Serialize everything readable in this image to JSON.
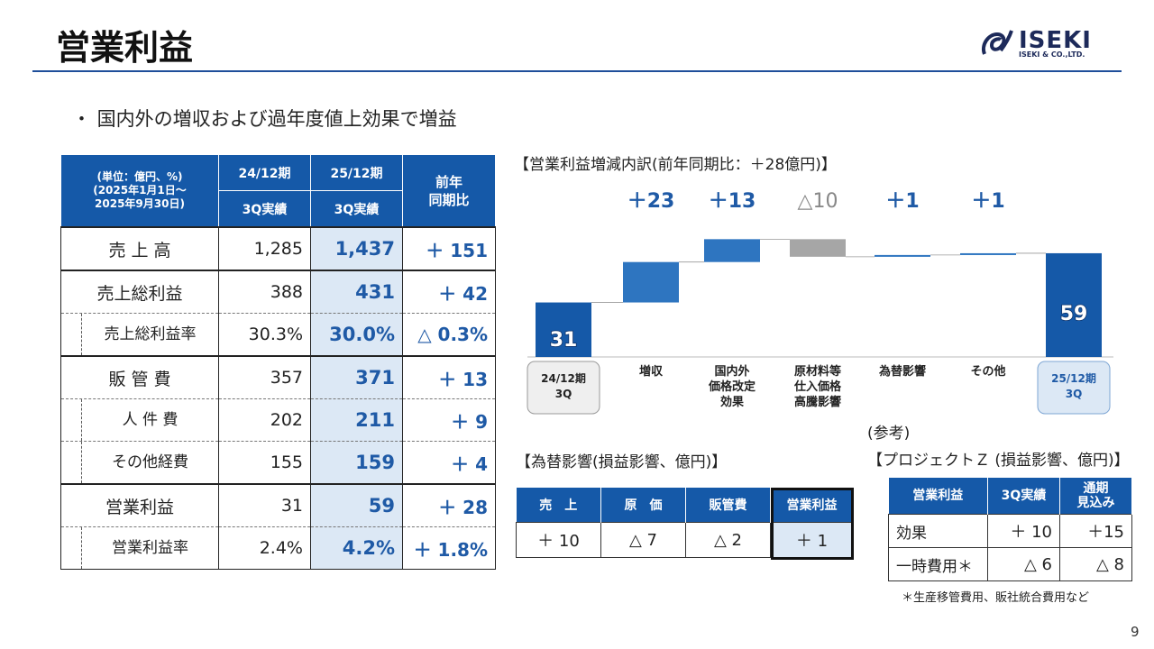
{
  "title": "営業利益",
  "logo": {
    "name": "ISEKI",
    "sub": "ISEKI & CO.,LTD."
  },
  "bullet": "・ 国内外の増収および過年度値上効果で増益",
  "page_number": "9",
  "colors": {
    "brand_blue": "#1559a8",
    "highlight": "#dce8f5",
    "bar_gray": "#a6a6a6",
    "text_blue": "#1f5aa6"
  },
  "main_table": {
    "header": {
      "unit_line1": "(単位：億円、%)",
      "unit_line2": "(2025年1月1日～",
      "unit_line3": "2025年9月30日)",
      "col1_top": "24/12期",
      "col1_bottom": "3Q実績",
      "col2_top": "25/12期",
      "col2_bottom": "3Q実績",
      "col3_line1": "前年",
      "col3_line2": "同期比"
    },
    "rows": [
      {
        "label": "売 上 高",
        "prev": "1,285",
        "curr": "1,437",
        "diff": "＋ 151"
      },
      {
        "label": "売上総利益",
        "prev": "388",
        "curr": "431",
        "diff": "＋ 42"
      },
      {
        "label": "売上総利益率",
        "prev": "30.3%",
        "curr": "30.0%",
        "diff": "△ 0.3%"
      },
      {
        "label": "販 管 費",
        "prev": "357",
        "curr": "371",
        "diff": "＋ 13"
      },
      {
        "label": "人 件 費",
        "prev": "202",
        "curr": "211",
        "diff": "＋ 9"
      },
      {
        "label": "その他経費",
        "prev": "155",
        "curr": "159",
        "diff": "＋ 4"
      },
      {
        "label": "営業利益",
        "prev": "31",
        "curr": "59",
        "diff": "＋ 28"
      },
      {
        "label": "営業利益率",
        "prev": "2.4%",
        "curr": "4.2%",
        "diff": "＋ 1.8%"
      }
    ]
  },
  "chart_data": {
    "type": "waterfall",
    "title": "【営業利益増減内訳(前年同期比：＋28億円)】",
    "categories": [
      "24/12期 3Q",
      "増収",
      "国内外 価格改定 効果",
      "原材料等 仕入価格 高騰影響",
      "為替影響",
      "その他",
      "25/12期 3Q"
    ],
    "category_lines": [
      [
        "24/12期",
        "3Q"
      ],
      [
        "増収"
      ],
      [
        "国内外",
        "価格改定",
        "効果"
      ],
      [
        "原材料等",
        "仕入価格",
        "高騰影響"
      ],
      [
        "為替影響"
      ],
      [
        "その他"
      ],
      [
        "25/12期",
        "3Q"
      ]
    ],
    "values": [
      31,
      23,
      13,
      -10,
      1,
      1,
      59
    ],
    "kinds": [
      "total",
      "increase",
      "increase",
      "decrease",
      "increase",
      "increase",
      "total"
    ],
    "delta_labels": [
      "",
      "＋23",
      "＋13",
      "△10",
      "＋1",
      "＋1",
      ""
    ],
    "total_labels": [
      "31",
      "",
      "",
      "",
      "",
      "",
      "59"
    ],
    "ylim": [
      0,
      75
    ]
  },
  "fx_table": {
    "title": "【為替影響(損益影響、億円)】",
    "headers": [
      "売　上",
      "原　価",
      "販管費",
      "営業利益"
    ],
    "values": [
      "＋ 10",
      "△ 7",
      "△ 2",
      "＋ 1"
    ]
  },
  "project_z": {
    "ref": "(参考)",
    "title": "【プロジェクトＺ (損益影響、億円)】",
    "header_label": "営業利益",
    "header_3q": "3Q実績",
    "header_fy_line1": "通期",
    "header_fy_line2": "見込み",
    "rows": [
      {
        "label": "効果",
        "actual": "＋ 10",
        "forecast": "＋15"
      },
      {
        "label": "一時費用＊",
        "actual": "△ 6",
        "forecast": "△ 8"
      }
    ],
    "footnote": "＊生産移管費用、販社統合費用など"
  }
}
